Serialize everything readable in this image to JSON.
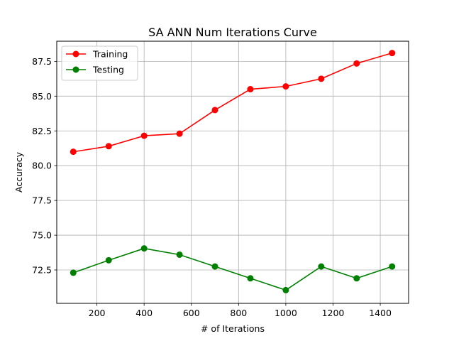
{
  "chart_data": {
    "type": "line",
    "title": "SA ANN Num Iterations Curve",
    "xlabel": "# of Iterations",
    "ylabel": "Accuracy",
    "x": [
      100,
      250,
      400,
      550,
      700,
      850,
      1000,
      1150,
      1300,
      1450
    ],
    "xlim": [
      30,
      1520
    ],
    "ylim": [
      70.1,
      88.95
    ],
    "xticks": [
      200,
      400,
      600,
      800,
      1000,
      1200,
      1400
    ],
    "yticks": [
      72.5,
      75.0,
      77.5,
      80.0,
      82.5,
      85.0,
      87.5
    ],
    "xtick_labels": [
      "200",
      "400",
      "600",
      "800",
      "1000",
      "1200",
      "1400"
    ],
    "ytick_labels": [
      "72.5",
      "75.0",
      "77.5",
      "80.0",
      "82.5",
      "85.0",
      "87.5"
    ],
    "grid": true,
    "legend_position": "upper-left",
    "series": [
      {
        "name": "Training",
        "color": "#ff0000",
        "marker": "circle",
        "values": [
          81.0,
          81.4,
          82.15,
          82.3,
          84.0,
          85.5,
          85.7,
          86.25,
          87.35,
          88.1
        ]
      },
      {
        "name": "Testing",
        "color": "#008000",
        "marker": "circle",
        "values": [
          72.3,
          73.2,
          74.05,
          73.6,
          72.75,
          71.9,
          71.05,
          72.75,
          71.9,
          72.75
        ]
      }
    ]
  }
}
